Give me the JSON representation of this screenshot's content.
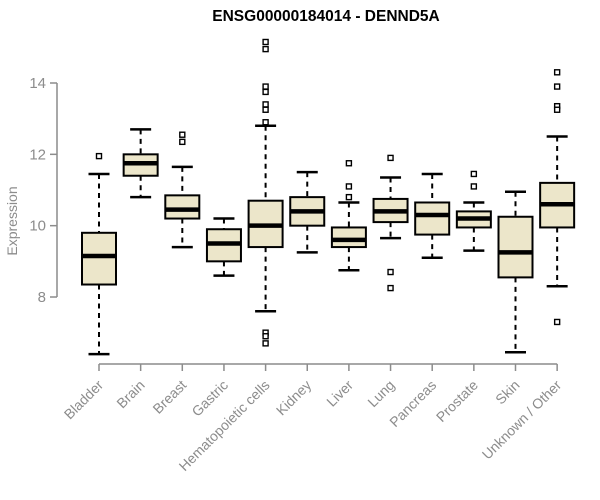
{
  "chart_data": {
    "type": "boxplot",
    "title": "ENSG00000184014 - DENND5A",
    "xlabel": "",
    "ylabel": "Expression",
    "yticks": [
      8,
      10,
      12,
      14
    ],
    "ylim": [
      6.2,
      15.4
    ],
    "grid": false,
    "legend": false,
    "background_color": "#ffffff",
    "box_fill_color": "#ece6ca",
    "box_border_color": "#000000",
    "axis_color": "#8c8c8c",
    "outlier_marker": "open-square",
    "categories": [
      "Bladder",
      "Brain",
      "Breast",
      "Gastric",
      "Hematopoietic cells",
      "Kidney",
      "Liver",
      "Lung",
      "Pancreas",
      "Prostate",
      "Skin",
      "Unknown / Other"
    ],
    "boxes": [
      {
        "category": "Bladder",
        "whisker_low": 6.4,
        "q1": 8.35,
        "median": 9.15,
        "q3": 9.8,
        "whisker_high": 11.45,
        "outliers": [
          11.95
        ]
      },
      {
        "category": "Brain",
        "whisker_low": 10.8,
        "q1": 11.4,
        "median": 11.75,
        "q3": 12.0,
        "whisker_high": 12.7,
        "outliers": []
      },
      {
        "category": "Breast",
        "whisker_low": 9.4,
        "q1": 10.2,
        "median": 10.45,
        "q3": 10.85,
        "whisker_high": 11.65,
        "outliers": [
          12.35,
          12.55
        ]
      },
      {
        "category": "Gastric",
        "whisker_low": 8.6,
        "q1": 9.0,
        "median": 9.5,
        "q3": 9.9,
        "whisker_high": 10.2,
        "outliers": []
      },
      {
        "category": "Hematopoietic cells",
        "whisker_low": 7.6,
        "q1": 9.4,
        "median": 10.0,
        "q3": 10.7,
        "whisker_high": 12.8,
        "outliers": [
          15.15,
          14.95,
          13.9,
          13.75,
          13.4,
          13.25,
          12.9,
          7.0,
          6.9,
          6.7
        ]
      },
      {
        "category": "Kidney",
        "whisker_low": 9.25,
        "q1": 10.0,
        "median": 10.4,
        "q3": 10.8,
        "whisker_high": 11.5,
        "outliers": []
      },
      {
        "category": "Liver",
        "whisker_low": 8.75,
        "q1": 9.4,
        "median": 9.6,
        "q3": 9.95,
        "whisker_high": 10.65,
        "outliers": [
          11.75,
          11.1,
          10.8
        ]
      },
      {
        "category": "Lung",
        "whisker_low": 9.65,
        "q1": 10.1,
        "median": 10.4,
        "q3": 10.75,
        "whisker_high": 11.35,
        "outliers": [
          11.9,
          8.7,
          8.25
        ]
      },
      {
        "category": "Pancreas",
        "whisker_low": 9.1,
        "q1": 9.75,
        "median": 10.3,
        "q3": 10.65,
        "whisker_high": 11.45,
        "outliers": []
      },
      {
        "category": "Prostate",
        "whisker_low": 9.3,
        "q1": 9.95,
        "median": 10.2,
        "q3": 10.4,
        "whisker_high": 10.65,
        "outliers": [
          11.45,
          11.1
        ]
      },
      {
        "category": "Skin",
        "whisker_low": 6.45,
        "q1": 8.55,
        "median": 9.25,
        "q3": 10.25,
        "whisker_high": 10.95,
        "outliers": []
      },
      {
        "category": "Unknown / Other",
        "whisker_low": 8.3,
        "q1": 9.95,
        "median": 10.6,
        "q3": 11.2,
        "whisker_high": 12.5,
        "outliers": [
          14.3,
          13.9,
          13.35,
          13.25,
          7.3
        ]
      }
    ]
  }
}
